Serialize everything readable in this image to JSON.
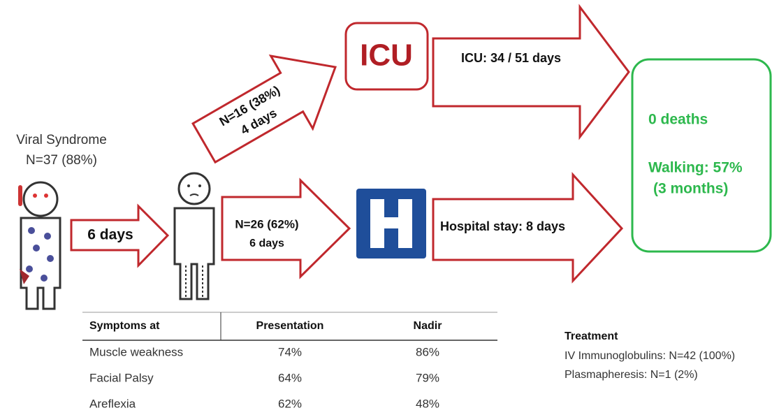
{
  "person_label": {
    "title": "Viral Syndrome",
    "count": "N=37 (88%)"
  },
  "arrows": [
    {
      "label": "6 days"
    },
    {
      "label": "N=16 (38%)",
      "sublabel": "4 days"
    },
    {
      "label": "N=26 (62%)",
      "sublabel": "6 days"
    },
    {
      "label": "ICU: 34 / 51 days"
    },
    {
      "label": "Hospital stay: 8 days"
    }
  ],
  "icu": {
    "label": "ICU"
  },
  "outcome": {
    "deaths": "0 deaths",
    "walking": "Walking: 57%",
    "walking_time": "(3 months)"
  },
  "table": {
    "header": [
      "Symptoms at",
      "Presentation",
      "Nadir"
    ],
    "rows": [
      [
        "Muscle weakness",
        "74%",
        "86%"
      ],
      [
        "Facial Palsy",
        "64%",
        "79%"
      ],
      [
        "Areflexia",
        "62%",
        "48%"
      ]
    ]
  },
  "treatment": {
    "title": "Treatment",
    "items": [
      "IV Immunoglobulins: N=42 (100%)",
      "Plasmapheresis: N=1 (2%)"
    ]
  }
}
